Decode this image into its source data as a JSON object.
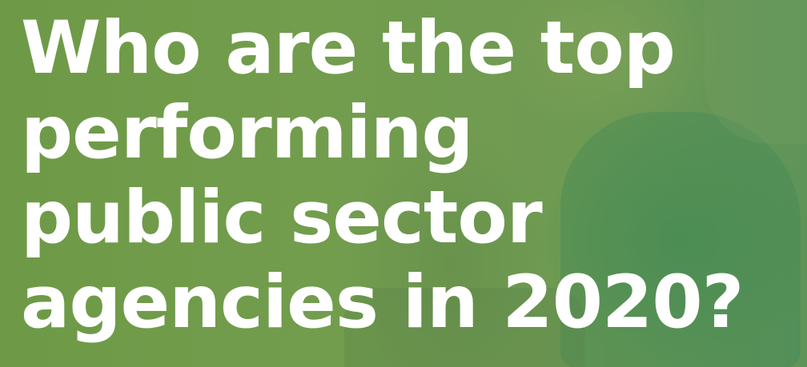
{
  "headline": {
    "lines": [
      "Who are the top",
      "performing",
      "public sector",
      "agencies in 2020?"
    ]
  },
  "colors": {
    "overlay_green": "#6f9a4e",
    "text": "#ffffff"
  }
}
